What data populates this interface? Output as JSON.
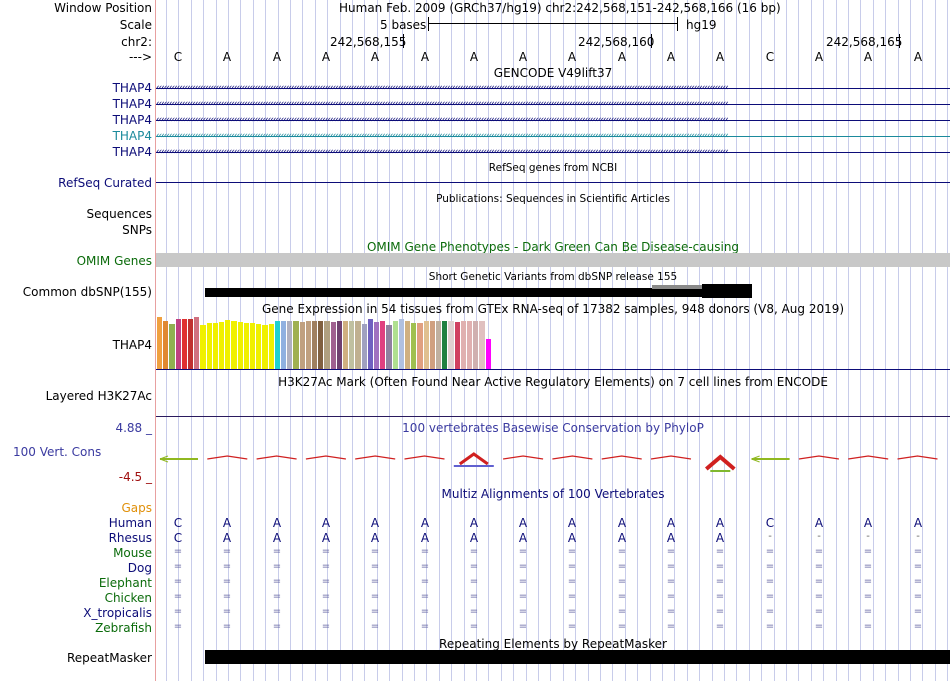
{
  "header": {
    "window_position_label": "Window Position",
    "assembly": "Human Feb. 2009 (GRCh37/hg19)",
    "position": "chr2:242,568,151-242,568,166 (16 bp)",
    "scale_label": "Scale",
    "scale_text": "5 bases",
    "scale_db": "hg19",
    "chrom_label": "chr2:",
    "ticks": [
      "242,568,155",
      "242,568,160",
      "242,568,165"
    ],
    "strand_label": "--->",
    "bases": [
      "C",
      "A",
      "A",
      "A",
      "A",
      "A",
      "A",
      "A",
      "A",
      "A",
      "A",
      "A",
      "C",
      "A",
      "A",
      "A"
    ]
  },
  "gencode": {
    "title": "GENCODE V49lift37",
    "rows": [
      {
        "label": "THAP4",
        "color": "#0c0c78"
      },
      {
        "label": "THAP4",
        "color": "#0c0c78"
      },
      {
        "label": "THAP4",
        "color": "#0c0c78"
      },
      {
        "label": "THAP4",
        "color": "#1b8a9c"
      },
      {
        "label": "THAP4",
        "color": "#0c0c78"
      }
    ]
  },
  "refseq": {
    "title": "RefSeq genes from NCBI",
    "label": "RefSeq Curated"
  },
  "publications": {
    "title": "Publications: Sequences in Scientific Articles",
    "label": "Sequences"
  },
  "snps": {
    "label": "SNPs"
  },
  "omim": {
    "title": "OMIM Gene Phenotypes - Dark Green Can Be Disease-causing",
    "label": "OMIM Genes",
    "color": "#0b6b0b"
  },
  "dbsnp": {
    "title": "Short Genetic Variants from dbSNP release 155",
    "label": "Common dbSNP(155)"
  },
  "gtex": {
    "title": "Gene Expression in 54 tissues from GTEx RNA-seq of 17382 samples, 948 donors (V8, Aug 2019)",
    "label": "THAP4",
    "chart_data": {
      "type": "bar",
      "title": "Gene Expression in 54 tissues from GTEx RNA-seq of 17382 samples, 948 donors (V8, Aug 2019)",
      "values": [
        52,
        48,
        45,
        50,
        50,
        50,
        52,
        44,
        46,
        46,
        47,
        49,
        48,
        47,
        46,
        46,
        45,
        44,
        45,
        48,
        48,
        48,
        48,
        47,
        48,
        48,
        48,
        48,
        47,
        48,
        48,
        48,
        48,
        45,
        50,
        47,
        48,
        44,
        48,
        50,
        48,
        46,
        46,
        48,
        48,
        48,
        48,
        48,
        47,
        48,
        48,
        48,
        48,
        30
      ],
      "colors": [
        "#f0a040",
        "#e08830",
        "#90b050",
        "#c04080",
        "#e03030",
        "#c03030",
        "#d07080",
        "#f0f000",
        "#f0f000",
        "#f0f000",
        "#f0f000",
        "#f0f000",
        "#f0f000",
        "#f0f000",
        "#f0f000",
        "#f0f000",
        "#f0f000",
        "#f0f000",
        "#f0f000",
        "#20d0d0",
        "#90b0e0",
        "#b0b0c0",
        "#a0b050",
        "#c0a080",
        "#c0a080",
        "#a08060",
        "#806040",
        "#b0a080",
        "#a06090",
        "#704070",
        "#d0b080",
        "#c0c0a0",
        "#c0b090",
        "#a0a0c0",
        "#7060c0",
        "#a070c0",
        "#e04080",
        "#9080a0",
        "#b0e090",
        "#b0c0e0",
        "#d0b080",
        "#a0c050",
        "#e0a080",
        "#e0c090",
        "#d0a080",
        "#c0b0a0",
        "#208040",
        "#e0d0d0",
        "#d04060",
        "#e0b0b0",
        "#e0b0b0",
        "#d0b0b0",
        "#e0c0c0",
        "#ff00ff"
      ]
    }
  },
  "h3k27ac": {
    "title": "H3K27Ac Mark (Often Found Near Active Regulatory Elements) on 7 cell lines from ENCODE",
    "label": "Layered H3K27Ac"
  },
  "phylop": {
    "title": "100 vertebrates Basewise Conservation by PhyloP",
    "label": "100 Vert. Cons",
    "max": "4.88 _",
    "min": "-4.5 _"
  },
  "multiz": {
    "title": "Multiz Alignments of 100 Vertebrates",
    "gaps_label": "Gaps",
    "species": [
      {
        "name": "Human",
        "seq": [
          "C",
          "A",
          "A",
          "A",
          "A",
          "A",
          "A",
          "A",
          "A",
          "A",
          "A",
          "A",
          "C",
          "A",
          "A",
          "A"
        ],
        "color": "#0c0c78"
      },
      {
        "name": "Rhesus",
        "seq": [
          "C",
          "A",
          "A",
          "A",
          "A",
          "A",
          "A",
          "A",
          "A",
          "A",
          "A",
          "A",
          "-",
          "-",
          "-",
          "-"
        ],
        "color": "#0c0c78"
      },
      {
        "name": "Mouse",
        "seq": [
          "=",
          "=",
          "=",
          "=",
          "=",
          "=",
          "=",
          "=",
          "=",
          "=",
          "=",
          "=",
          "=",
          "=",
          "=",
          "="
        ],
        "color": "#0b6b0b"
      },
      {
        "name": "Dog",
        "seq": [
          "=",
          "=",
          "=",
          "=",
          "=",
          "=",
          "=",
          "=",
          "=",
          "=",
          "=",
          "=",
          "=",
          "=",
          "=",
          "="
        ],
        "color": "#0c0c78"
      },
      {
        "name": "Elephant",
        "seq": [
          "=",
          "=",
          "=",
          "=",
          "=",
          "=",
          "=",
          "=",
          "=",
          "=",
          "=",
          "=",
          "=",
          "=",
          "=",
          "="
        ],
        "color": "#0b6b0b"
      },
      {
        "name": "Chicken",
        "seq": [
          "=",
          "=",
          "=",
          "=",
          "=",
          "=",
          "=",
          "=",
          "=",
          "=",
          "=",
          "=",
          "=",
          "=",
          "=",
          "="
        ],
        "color": "#0b6b0b"
      },
      {
        "name": "X_tropicalis",
        "seq": [
          "=",
          "=",
          "=",
          "=",
          "=",
          "=",
          "=",
          "=",
          "=",
          "=",
          "=",
          "=",
          "=",
          "=",
          "=",
          "="
        ],
        "color": "#0c0c78"
      },
      {
        "name": "Zebrafish",
        "seq": [
          "=",
          "=",
          "=",
          "=",
          "=",
          "=",
          "=",
          "=",
          "=",
          "=",
          "=",
          "=",
          "=",
          "=",
          "=",
          "="
        ],
        "color": "#0b6b0b"
      }
    ]
  },
  "repeatmasker": {
    "title": "Repeating Elements by RepeatMasker",
    "label": "RepeatMasker"
  }
}
